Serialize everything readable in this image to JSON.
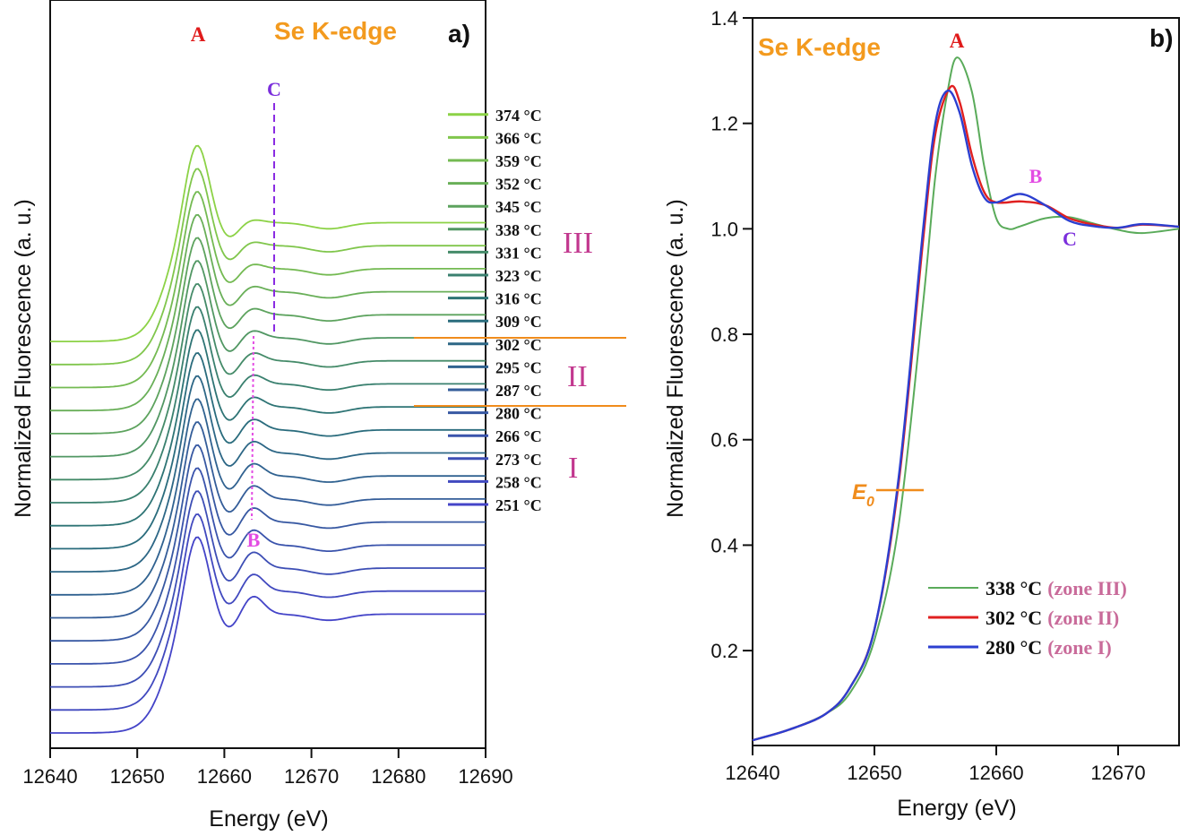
{
  "chart_data": [
    {
      "panel": "a)",
      "type": "line",
      "title": "Se K-edge",
      "xlabel": "Energy (eV)",
      "ylabel": "Normalized Fluorescence (a. u.)",
      "xlim": [
        12640,
        12690
      ],
      "xticks": [
        "12640",
        "12650",
        "12660",
        "12670",
        "12680",
        "12690"
      ],
      "series": [
        {
          "name": "251 °C"
        },
        {
          "name": "258 °C"
        },
        {
          "name": "273 °C"
        },
        {
          "name": "266 °C"
        },
        {
          "name": "280 °C"
        },
        {
          "name": "287 °C"
        },
        {
          "name": "295 °C"
        },
        {
          "name": "302 °C"
        },
        {
          "name": "309 °C"
        },
        {
          "name": "316 °C"
        },
        {
          "name": "323 °C"
        },
        {
          "name": "331 °C"
        },
        {
          "name": "338 °C"
        },
        {
          "name": "345 °C"
        },
        {
          "name": "352 °C"
        },
        {
          "name": "359 °C"
        },
        {
          "name": "366 °C"
        },
        {
          "name": "374 °C"
        }
      ],
      "annotations": {
        "A": "A",
        "B": "B",
        "C": "C",
        "zone1": "I",
        "zone2": "II",
        "zone3": "III"
      },
      "features_eV": {
        "A": 12657,
        "B": 12663.5,
        "C": 12666
      }
    },
    {
      "panel": "b)",
      "type": "line",
      "title": "Se K-edge",
      "xlabel": "Energy (eV)",
      "ylabel": "Normalized Fluorescence (a. u.)",
      "xlim": [
        12640,
        12675
      ],
      "ylim": [
        0.02,
        1.4
      ],
      "xticks": [
        "12640",
        "12650",
        "12660",
        "12670"
      ],
      "yticks": [
        "0.2",
        "0.4",
        "0.6",
        "0.8",
        "1.0",
        "1.2",
        "1.4"
      ],
      "e0_label": "E",
      "e0_sub": "0",
      "annotations": {
        "A": "A",
        "B": "B",
        "C": "C"
      },
      "series": [
        {
          "name": "338 °C",
          "zone": "(zone III)",
          "color": "#5aab5a",
          "x": [
            12640,
            12643,
            12646,
            12648,
            12650,
            12652,
            12654,
            12655,
            12656,
            12656.8,
            12658,
            12659,
            12660,
            12661,
            12662,
            12664,
            12666,
            12668,
            12670,
            12672,
            12675
          ],
          "y": [
            0.03,
            0.05,
            0.08,
            0.12,
            0.22,
            0.44,
            0.86,
            1.1,
            1.26,
            1.325,
            1.26,
            1.12,
            1.02,
            1.0,
            1.005,
            1.02,
            1.022,
            1.01,
            0.998,
            0.992,
            1.0
          ]
        },
        {
          "name": "302 °C",
          "zone": "(zone II)",
          "color": "#e02020",
          "x": [
            12640,
            12643,
            12646,
            12648,
            12650,
            12652,
            12654,
            12655,
            12656.2,
            12657,
            12658,
            12659,
            12660,
            12662,
            12664,
            12666,
            12668,
            12670,
            12672,
            12675
          ],
          "y": [
            0.03,
            0.05,
            0.08,
            0.13,
            0.24,
            0.52,
            0.98,
            1.18,
            1.268,
            1.24,
            1.14,
            1.07,
            1.05,
            1.052,
            1.045,
            1.02,
            1.008,
            1.002,
            1.008,
            1.004
          ]
        },
        {
          "name": "280 °C",
          "zone": "(zone I)",
          "color": "#2c3fd0",
          "x": [
            12640,
            12643,
            12646,
            12648,
            12650,
            12652,
            12654,
            12655,
            12656,
            12657,
            12658,
            12659,
            12660,
            12662,
            12664,
            12666,
            12668,
            12670,
            12672,
            12675
          ],
          "y": [
            0.03,
            0.05,
            0.08,
            0.13,
            0.24,
            0.53,
            1.0,
            1.2,
            1.262,
            1.22,
            1.12,
            1.06,
            1.05,
            1.066,
            1.045,
            1.015,
            1.005,
            1.002,
            1.009,
            1.004
          ]
        }
      ]
    }
  ],
  "colors": {
    "title": "#f39a1e",
    "A": "#e01b1b",
    "B": "#e34ce3",
    "C": "#7b2fdc",
    "zone": "#c2378e",
    "zoneLine": "#f08c1c",
    "e0": "#f08c1c"
  }
}
